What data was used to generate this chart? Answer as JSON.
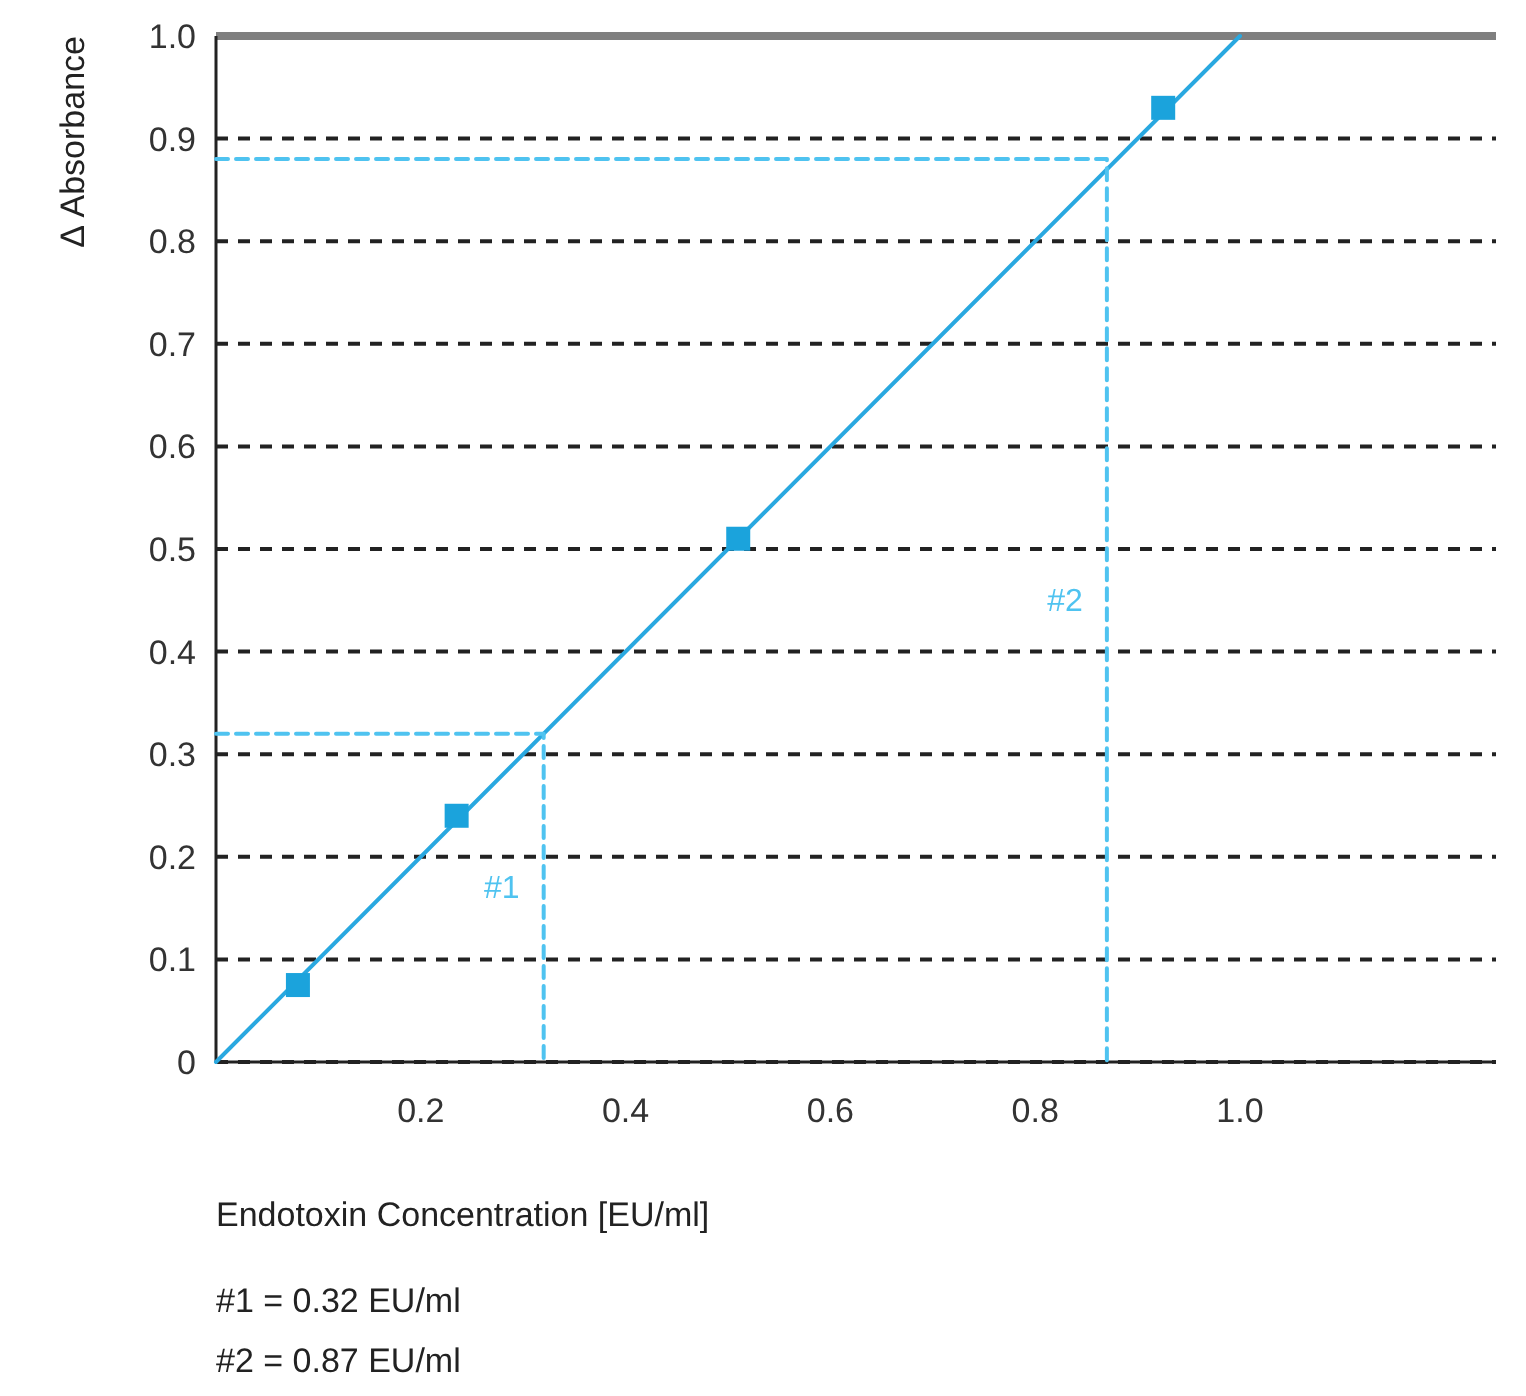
{
  "chart_data": {
    "type": "scatter",
    "xlabel": "Endotoxin Concentration [EU/ml]",
    "ylabel": "Δ Absorbance",
    "xlim": [
      0,
      1.25
    ],
    "ylim": [
      0,
      1
    ],
    "xticks": [
      {
        "value": 0.2,
        "label": "0.2"
      },
      {
        "value": 0.4,
        "label": "0.4"
      },
      {
        "value": 0.6,
        "label": "0.6"
      },
      {
        "value": 0.8,
        "label": "0.8"
      },
      {
        "value": 1,
        "label": "1.0"
      }
    ],
    "yticks": [
      0,
      0.1,
      0.2,
      0.3,
      0.4,
      0.5,
      0.6,
      0.7,
      0.8,
      0.9,
      {
        "value": 1,
        "label": "1.0"
      }
    ],
    "grid": "y",
    "marker": "square",
    "series": [
      {
        "type": "line",
        "color": "#29a8e0",
        "x": [
          0,
          1
        ],
        "values": [
          0,
          1
        ],
        "marker": "none",
        "line_style": "solid"
      },
      {
        "color": "#1ba3dc",
        "x": [
          0.08,
          0.235,
          0.51,
          0.925
        ],
        "values": [
          0.075,
          0.24,
          0.51,
          0.93
        ]
      },
      {
        "type": "line",
        "name": "#1",
        "color": "#4fc3f0",
        "x": [
          0,
          0.32,
          0.32
        ],
        "values": [
          0.32,
          0.32,
          0
        ],
        "marker": "none",
        "line_style": "dashed"
      },
      {
        "type": "line",
        "name": "#2",
        "color": "#4fc3f0",
        "x": [
          0,
          0.87,
          0.87
        ],
        "values": [
          0.88,
          0.88,
          0
        ],
        "marker": "none",
        "line_style": "dashed"
      }
    ],
    "ref_lines": [
      {
        "axis": "y",
        "value": 1,
        "color": "#7f7f7f",
        "line_style": "solid"
      }
    ],
    "annotations": [
      "#1 = 0.32 EU/ml",
      "#2 = 0.87 EU/ml"
    ]
  }
}
